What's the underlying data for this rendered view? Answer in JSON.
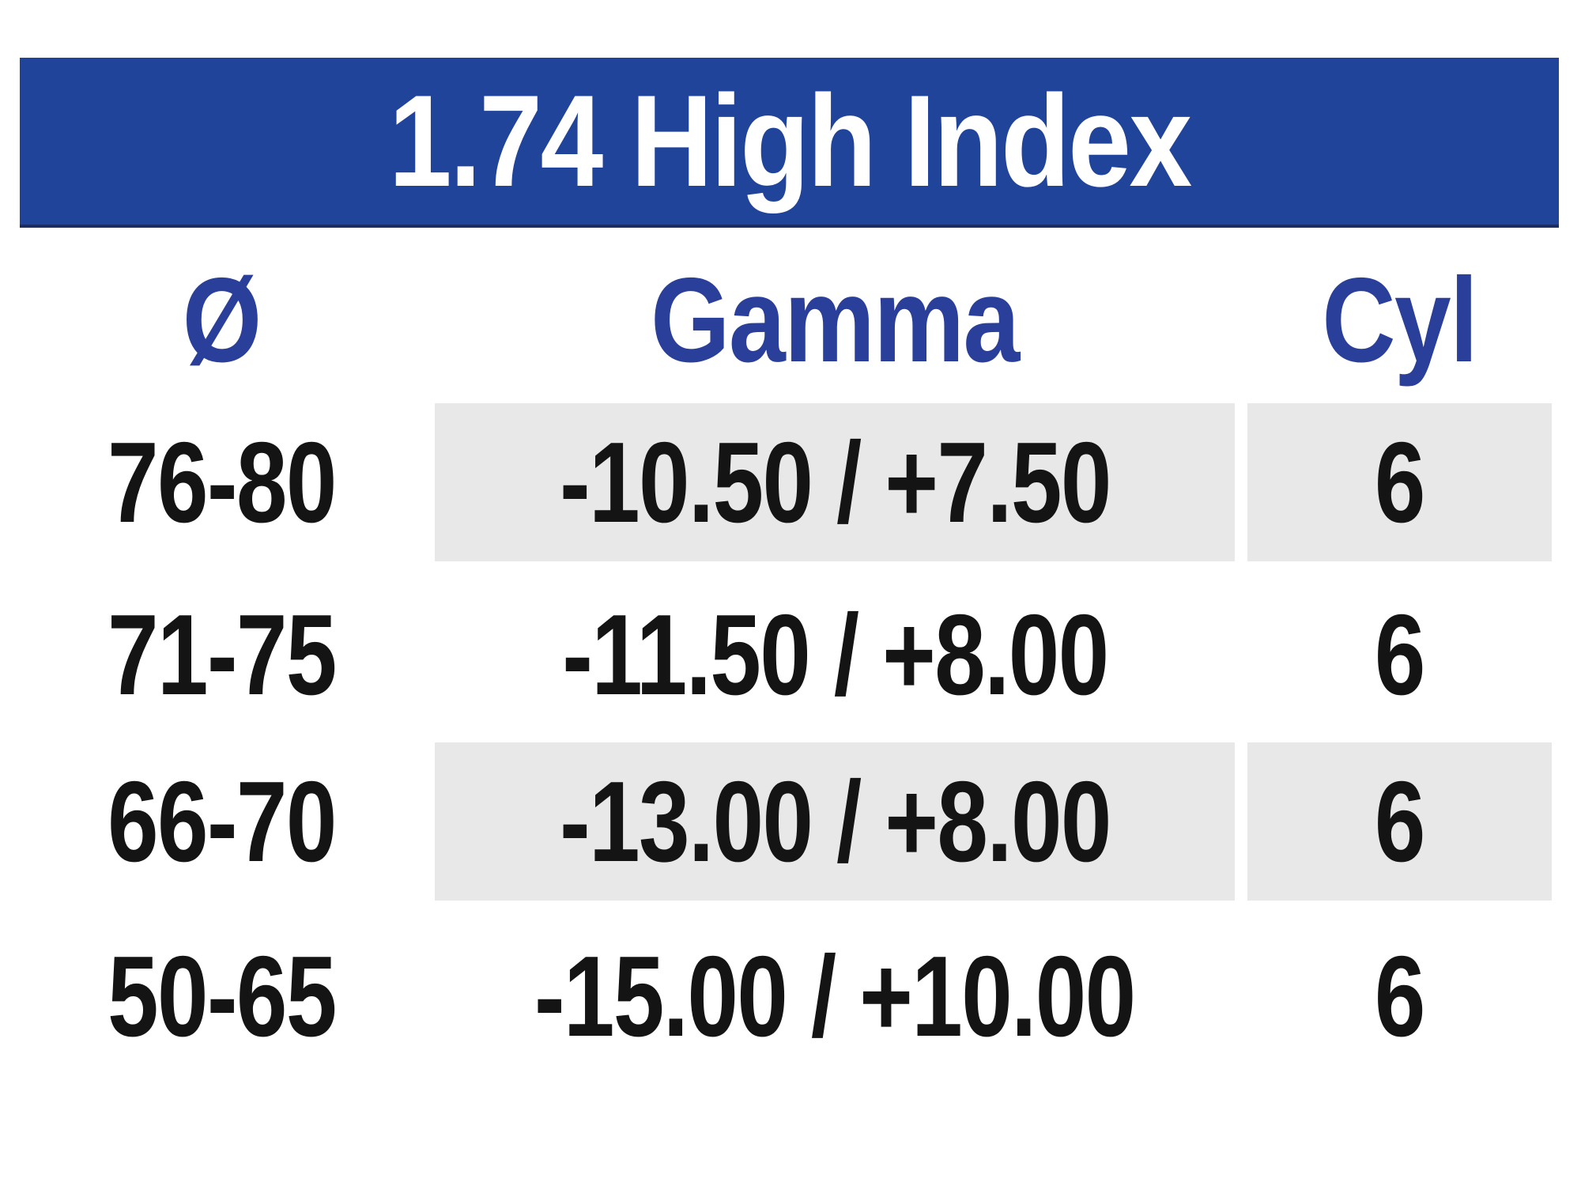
{
  "banner": {
    "title": "1.74 High Index",
    "background_color": "#21449B",
    "text_color": "#FFFFFF"
  },
  "table": {
    "columns": [
      {
        "id": "diameter",
        "label": "Ø"
      },
      {
        "id": "gamma",
        "label": "Gamma"
      },
      {
        "id": "cyl",
        "label": "Cyl"
      }
    ],
    "rows": [
      {
        "diameter": "76-80",
        "gamma": "-10.50 / +7.50",
        "cyl": "6"
      },
      {
        "diameter": "71-75",
        "gamma": "-11.50 / +8.00",
        "cyl": "6"
      },
      {
        "diameter": "66-70",
        "gamma": "-13.00 / +8.00",
        "cyl": "6"
      },
      {
        "diameter": "50-65",
        "gamma": "-15.00 / +10.00",
        "cyl": "6"
      }
    ]
  },
  "colors": {
    "header_text": "#2A3F9A",
    "row_shade": "#E8E8E8",
    "data_text": "#141414",
    "banner_edge": "#1B2B63"
  }
}
